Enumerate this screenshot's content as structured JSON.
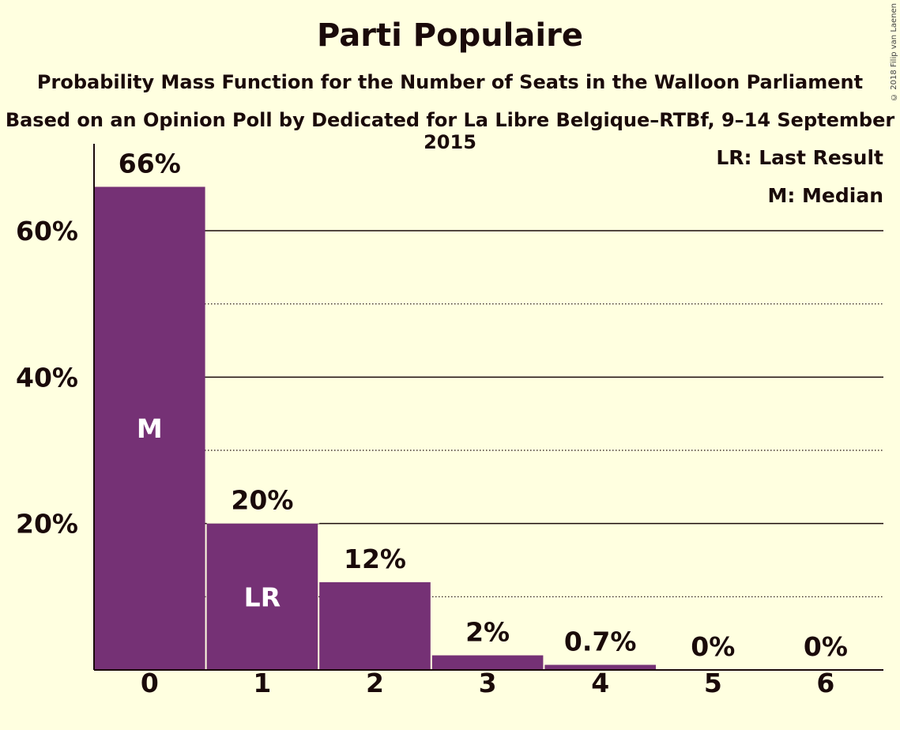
{
  "chart_data": {
    "type": "bar",
    "title": "Parti Populaire",
    "subtitle": "Probability Mass Function for the Number of Seats in the Walloon Parliament",
    "subtitle2": "Based on an Opinion Poll by Dedicated for La Libre Belgique–RTBf, 9–14 September 2015",
    "categories": [
      "0",
      "1",
      "2",
      "3",
      "4",
      "5",
      "6"
    ],
    "values": [
      66,
      20,
      12,
      2,
      0.7,
      0,
      0
    ],
    "value_labels": [
      "66%",
      "20%",
      "12%",
      "2%",
      "0.7%",
      "0%",
      "0%"
    ],
    "bar_markers": [
      "M",
      "LR",
      "",
      "",
      "",
      "",
      ""
    ],
    "ylim": [
      0,
      70
    ],
    "y_ticks": [
      20,
      40,
      60
    ],
    "y_tick_labels": [
      "20%",
      "40%",
      "60%"
    ],
    "minor_gridlines": [
      10,
      30,
      50
    ],
    "xlabel": "",
    "ylabel": "",
    "legend": [
      "LR: Last Result",
      "M: Median"
    ],
    "legend_position": "top-right",
    "bar_color": "#753175",
    "marker_color": "#ffffff"
  },
  "copyright": "© 2018 Filip van Laenen"
}
